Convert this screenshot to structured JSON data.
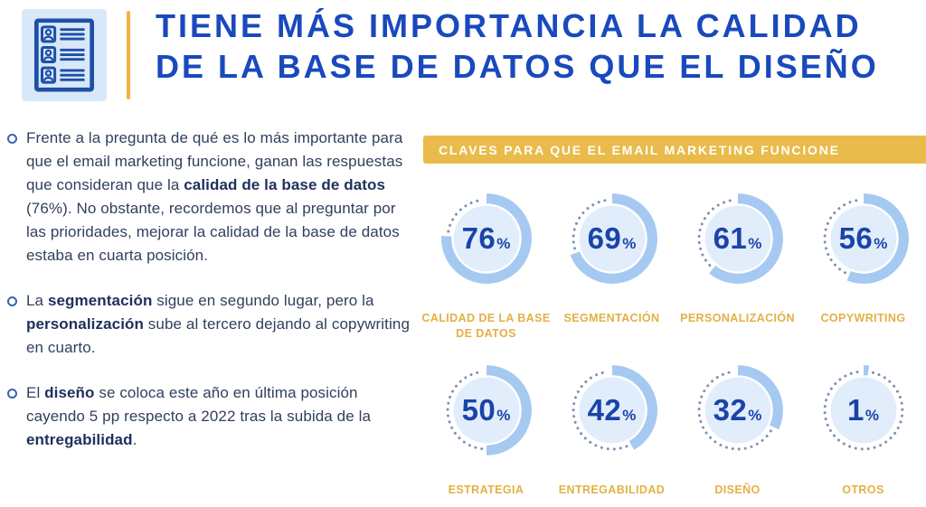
{
  "theme": {
    "title_blue": "#1949BD",
    "pct_blue": "#1B44A8",
    "body_text": "#31405E",
    "body_bold": "#20305C",
    "bullet_ring": "#3A63B8",
    "banner_gold": "#E9BB4A",
    "label_gold": "#E4B044",
    "divider_gold": "#F0B43E",
    "icon_bg": "#D8E8F8",
    "icon_stroke": "#1E4FA8",
    "arc_blue": "#A6C9F2",
    "inner_blue": "#E1EDFB",
    "dot_color": "#7F92B0"
  },
  "header": {
    "icon": "contact-list-icon",
    "title_line1": "TIENE MÁS IMPORTANCIA LA CALIDAD",
    "title_line2": "DE LA BASE DE DATOS QUE EL DISEÑO"
  },
  "bullets": [
    {
      "segments": [
        {
          "t": "Frente a la pregunta de qué es lo más importante para que el email marketing funcione, ganan las respuestas que consideran que la ",
          "b": false
        },
        {
          "t": "calidad de la base de datos",
          "b": true
        },
        {
          "t": " (76%). No obstante, recordemos que al preguntar por las prioridades, mejorar la calidad de la base de datos estaba en cuarta posición.",
          "b": false
        }
      ]
    },
    {
      "segments": [
        {
          "t": "La ",
          "b": false
        },
        {
          "t": "segmentación",
          "b": true
        },
        {
          "t": " sigue en segundo lugar, pero la ",
          "b": false
        },
        {
          "t": "personalización",
          "b": true
        },
        {
          "t": " sube al tercero dejando al copywriting en cuarto.",
          "b": false
        }
      ]
    },
    {
      "segments": [
        {
          "t": "El ",
          "b": false
        },
        {
          "t": "diseño",
          "b": true
        },
        {
          "t": " se coloca este año en última posición cayendo 5 pp respecto a 2022 tras la subida de la ",
          "b": false
        },
        {
          "t": "entregabilidad",
          "b": true
        },
        {
          "t": ".",
          "b": false
        }
      ]
    }
  ],
  "chart_data": {
    "type": "pie",
    "variant": "donut-grid",
    "title": "CLAVES PARA QUE EL EMAIL MARKETING FUNCIONE",
    "unit": "%",
    "categories": [
      "CALIDAD DE LA BASE DE DATOS",
      "SEGMENTACIÓN",
      "PERSONALIZACIÓN",
      "COPYWRITING",
      "ESTRATEGIA",
      "ENTREGABILIDAD",
      "DISEÑO",
      "OTROS"
    ],
    "values": [
      76,
      69,
      61,
      56,
      50,
      42,
      32,
      1
    ],
    "layout": "4 columns x 2 rows, each donut starts at 12 o'clock clockwise, remainder shown as dotted arc",
    "items": [
      {
        "label": "CALIDAD DE LA BASE DE DATOS",
        "value": 76
      },
      {
        "label": "SEGMENTACIÓN",
        "value": 69
      },
      {
        "label": "PERSONALIZACIÓN",
        "value": 61
      },
      {
        "label": "COPYWRITING",
        "value": 56
      },
      {
        "label": "ESTRATEGIA",
        "value": 50
      },
      {
        "label": "ENTREGABILIDAD",
        "value": 42
      },
      {
        "label": "DISEÑO",
        "value": 32
      },
      {
        "label": "OTROS",
        "value": 1
      }
    ]
  }
}
